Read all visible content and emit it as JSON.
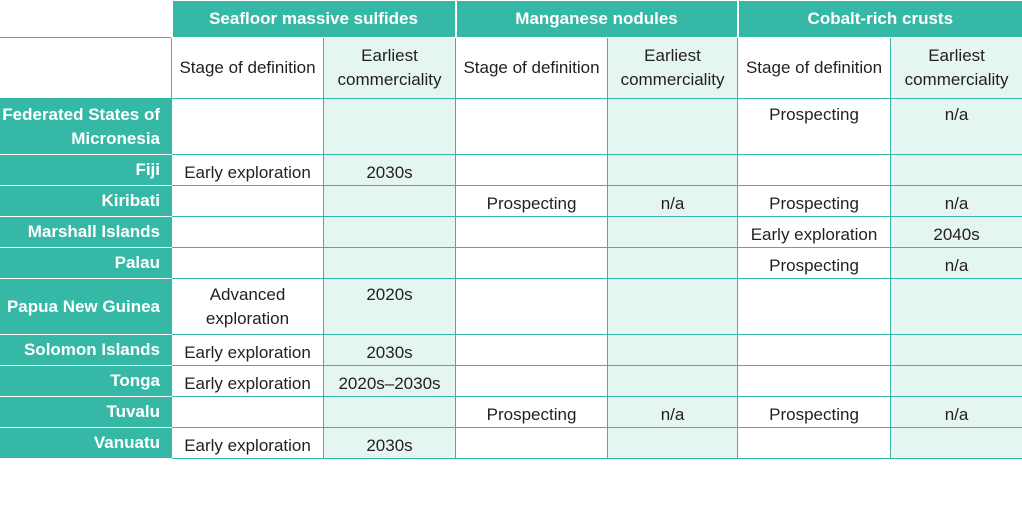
{
  "groups": [
    "Seafloor massive sulfides",
    "Manganese nodules",
    "Cobalt-rich crusts"
  ],
  "subheaders": {
    "stage": "Stage of definition",
    "earliest": "Earliest commerciality"
  },
  "rows": [
    {
      "country": "Federated States of Micronesia",
      "cells": [
        "",
        "",
        "",
        "",
        "Prospecting",
        "n/a"
      ]
    },
    {
      "country": "Fiji",
      "cells": [
        "Early exploration",
        "2030s",
        "",
        "",
        "",
        ""
      ]
    },
    {
      "country": "Kiribati",
      "cells": [
        "",
        "",
        "Prospecting",
        "n/a",
        "Prospecting",
        "n/a"
      ]
    },
    {
      "country": "Marshall Islands",
      "cells": [
        "",
        "",
        "",
        "",
        "Early exploration",
        "2040s"
      ]
    },
    {
      "country": "Palau",
      "cells": [
        "",
        "",
        "",
        "",
        "Prospecting",
        "n/a"
      ]
    },
    {
      "country": "Papua New Guinea",
      "cells": [
        "Advanced exploration",
        "2020s",
        "",
        "",
        "",
        ""
      ]
    },
    {
      "country": "Solomon Islands",
      "cells": [
        "Early exploration",
        "2030s",
        "",
        "",
        "",
        ""
      ]
    },
    {
      "country": "Tonga",
      "cells": [
        "Early exploration",
        "2020s–2030s",
        "",
        "",
        "",
        ""
      ]
    },
    {
      "country": "Tuvalu",
      "cells": [
        "",
        "",
        "Prospecting",
        "n/a",
        "Prospecting",
        "n/a"
      ]
    },
    {
      "country": "Vanuatu",
      "cells": [
        "Early exploration",
        "2030s",
        "",
        "",
        "",
        ""
      ]
    }
  ]
}
